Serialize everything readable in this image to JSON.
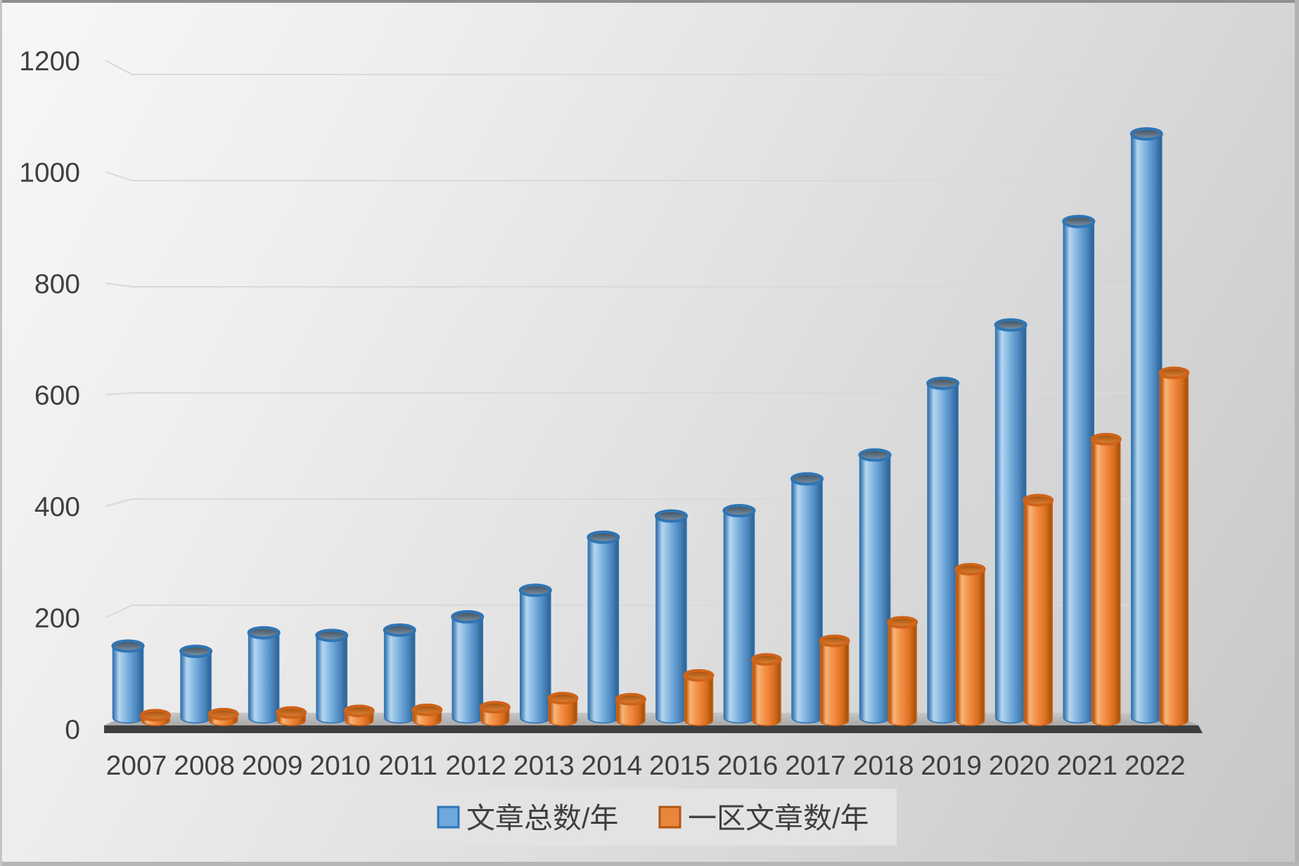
{
  "chart_data": {
    "type": "bar",
    "style": "3d-cylinder",
    "title": "",
    "xlabel": "",
    "ylabel": "",
    "categories": [
      "2007",
      "2008",
      "2009",
      "2010",
      "2011",
      "2012",
      "2013",
      "2014",
      "2015",
      "2016",
      "2017",
      "2018",
      "2019",
      "2020",
      "2021",
      "2022"
    ],
    "series": [
      {
        "name": "文章总数/年",
        "color": "#5B9BD5",
        "values": [
          135,
          125,
          160,
          155,
          165,
          190,
          240,
          340,
          380,
          390,
          450,
          495,
          630,
          740,
          935,
          1100
        ]
      },
      {
        "name": "一区文章数/年",
        "color": "#ED7D31",
        "values": [
          10,
          12,
          15,
          18,
          20,
          25,
          42,
          40,
          85,
          115,
          150,
          185,
          285,
          415,
          530,
          655
        ]
      }
    ],
    "ylim": [
      0,
      1200
    ],
    "yticks": [
      0,
      200,
      400,
      600,
      800,
      1000,
      1200
    ],
    "grid": true,
    "legend_position": "bottom"
  },
  "colors": {
    "gridline": "#d9d9d9",
    "axis_floor_dark": "#3e3e3e",
    "floor_light": "#bdbdbd",
    "label_text": "#3f3f3f",
    "legend_bg": "#e3e3e3",
    "blue_rim": "#2e75b6",
    "orange_rim": "#cf6318"
  }
}
